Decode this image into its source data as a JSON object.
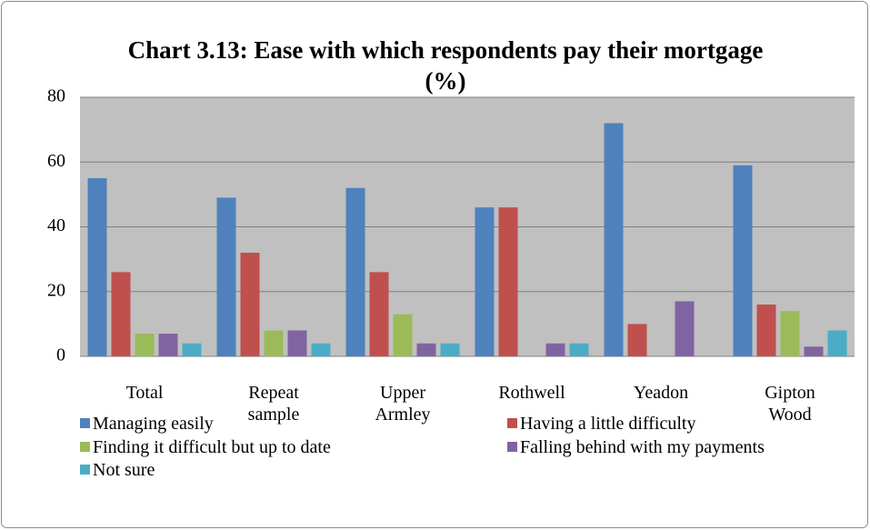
{
  "chart_data": {
    "type": "bar",
    "title": "Chart 3.13: Ease with which respondents pay their mortgage (%)",
    "categories": [
      "Total",
      "Repeat sample",
      "Upper Armley",
      "Rothwell",
      "Yeadon",
      "Gipton Wood"
    ],
    "series": [
      {
        "name": "Managing easily",
        "color": "#4f81bd",
        "values": [
          55,
          49,
          52,
          46,
          72,
          59
        ]
      },
      {
        "name": "Having a little difficulty",
        "color": "#c0504d",
        "values": [
          26,
          32,
          26,
          46,
          10,
          16
        ]
      },
      {
        "name": "Finding it difficult but up to date",
        "color": "#9bbb59",
        "values": [
          7,
          8,
          13,
          0,
          0,
          14
        ]
      },
      {
        "name": "Falling behind with my payments",
        "color": "#8064a2",
        "values": [
          7,
          8,
          4,
          4,
          17,
          3
        ]
      },
      {
        "name": "Not sure",
        "color": "#4bacc6",
        "values": [
          4,
          4,
          4,
          4,
          0,
          8
        ]
      }
    ],
    "ylim": [
      0,
      80
    ],
    "yticks": [
      0,
      20,
      40,
      60,
      80
    ],
    "grid": true,
    "legend": "bottom"
  }
}
